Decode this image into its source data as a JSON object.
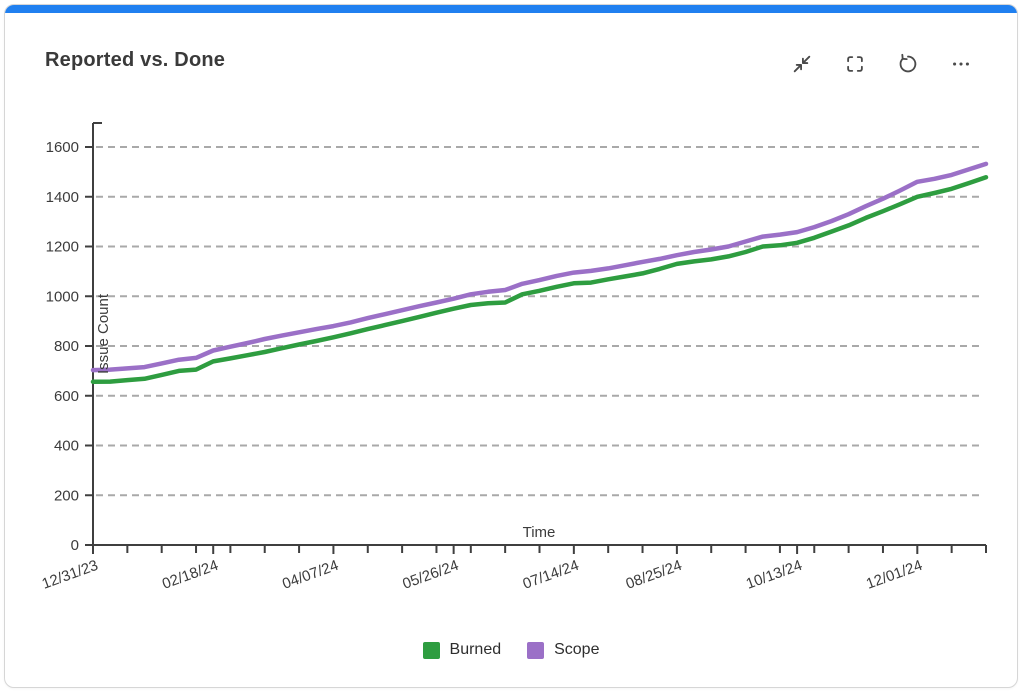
{
  "window": {
    "accent_color": "#2080f0"
  },
  "header": {
    "title": "Reported vs. Done",
    "toolbar": [
      {
        "name": "collapse",
        "icon": "collapse-arrows-icon"
      },
      {
        "name": "fullscreen",
        "icon": "fullscreen-brackets-icon"
      },
      {
        "name": "reset",
        "icon": "reset-circular-arrow-icon"
      },
      {
        "name": "more",
        "icon": "ellipsis-icon"
      }
    ]
  },
  "chart_data": {
    "type": "line",
    "title": "Reported vs. Done",
    "xlabel": "Time",
    "ylabel": "Issue Count",
    "ylim": [
      0,
      1600
    ],
    "ytick_step": 200,
    "grid": "dashed-horizontal",
    "legend_position": "bottom-center",
    "x_start_label": "12/31/23",
    "x_total_weeks": 52,
    "x_tick_labels": [
      "12/31/23",
      "02/18/24",
      "04/07/24",
      "05/26/24",
      "07/14/24",
      "08/25/24",
      "10/13/24",
      "12/01/24"
    ],
    "x_tick_weeks": [
      0,
      7,
      14,
      21,
      28,
      34,
      41,
      48
    ],
    "series": [
      {
        "name": "Burned",
        "color": "#2e9d40",
        "values": [
          656,
          657,
          663,
          668,
          684,
          700,
          705,
          738,
          750,
          763,
          776,
          791,
          806,
          820,
          835,
          851,
          868,
          884,
          900,
          917,
          934,
          950,
          965,
          972,
          975,
          1008,
          1022,
          1038,
          1052,
          1055,
          1068,
          1080,
          1092,
          1110,
          1130,
          1140,
          1148,
          1160,
          1178,
          1200,
          1205,
          1215,
          1235,
          1260,
          1285,
          1315,
          1342,
          1370,
          1400,
          1415,
          1432,
          1455,
          1478
        ]
      },
      {
        "name": "Scope",
        "color": "#9b70c7",
        "values": [
          703,
          705,
          710,
          715,
          730,
          745,
          752,
          782,
          797,
          812,
          828,
          842,
          855,
          868,
          880,
          895,
          912,
          928,
          944,
          960,
          975,
          990,
          1008,
          1018,
          1025,
          1050,
          1065,
          1082,
          1095,
          1102,
          1112,
          1125,
          1138,
          1150,
          1165,
          1178,
          1188,
          1200,
          1220,
          1240,
          1248,
          1258,
          1278,
          1302,
          1330,
          1362,
          1392,
          1425,
          1460,
          1472,
          1488,
          1510,
          1532
        ]
      }
    ]
  },
  "legend": {
    "items": [
      {
        "label": "Burned",
        "color": "#2e9d40"
      },
      {
        "label": "Scope",
        "color": "#9b70c7"
      }
    ]
  }
}
